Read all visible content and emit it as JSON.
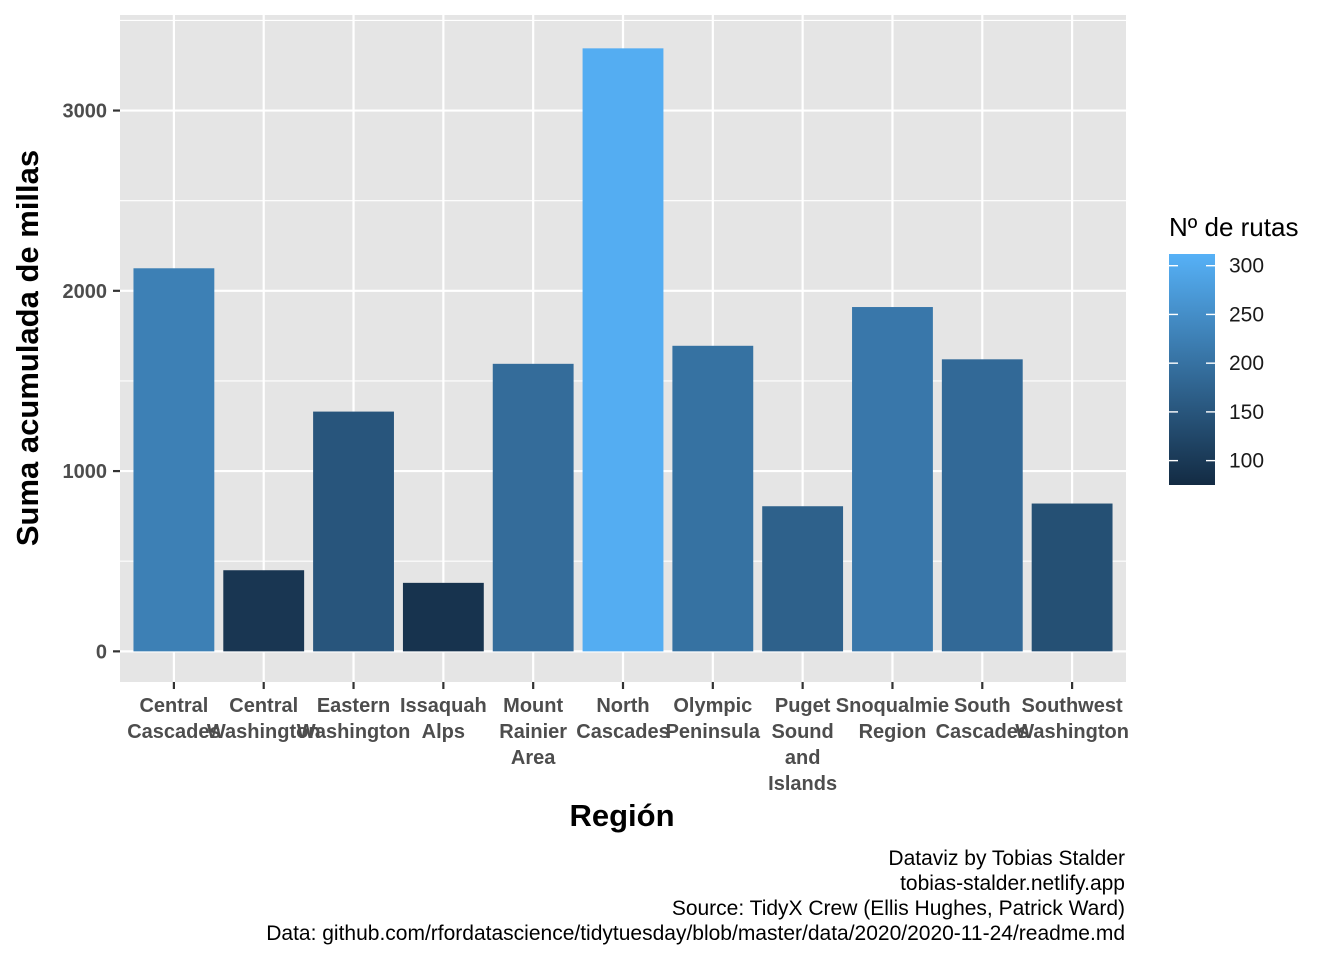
{
  "chart_data": {
    "type": "bar",
    "categories": [
      [
        "Central",
        "Cascades"
      ],
      [
        "Central",
        "Washington"
      ],
      [
        "Eastern",
        "Washington"
      ],
      [
        "Issaquah",
        "Alps"
      ],
      [
        "Mount",
        "Rainier",
        "Area"
      ],
      [
        "North",
        "Cascades"
      ],
      [
        "Olympic",
        "Peninsula"
      ],
      [
        "Puget",
        "Sound",
        "and",
        "Islands"
      ],
      [
        "Snoqualmie",
        "Region"
      ],
      [
        "South",
        "Cascades"
      ],
      [
        "Southwest",
        "Washington"
      ]
    ],
    "values": [
      2125,
      450,
      1330,
      380,
      1595,
      3345,
      1695,
      805,
      1910,
      1620,
      820
    ],
    "fill_values": [
      225,
      95,
      150,
      90,
      190,
      305,
      200,
      170,
      210,
      185,
      140
    ],
    "xlabel": "Región",
    "ylabel": "Suma acumulada de millas",
    "ylim": [
      -170,
      3530
    ],
    "yticks": [
      0,
      1000,
      2000,
      3000
    ],
    "grid": true,
    "legend": {
      "title": "Nº de rutas",
      "position": "right",
      "min": 75,
      "max": 312,
      "ticks": [
        100,
        150,
        200,
        250,
        300
      ],
      "color_low": "#132B43",
      "color_high": "#56B1F7"
    },
    "panel_background": "#e5e5e5",
    "grid_color": "#ffffff"
  },
  "caption": [
    "Dataviz by Tobias Stalder",
    "tobias-stalder.netlify.app",
    "Source: TidyX Crew (Ellis Hughes, Patrick Ward)",
    "Data: github.com/rfordatascience/tidytuesday/blob/master/data/2020/2020-11-24/readme.md"
  ]
}
